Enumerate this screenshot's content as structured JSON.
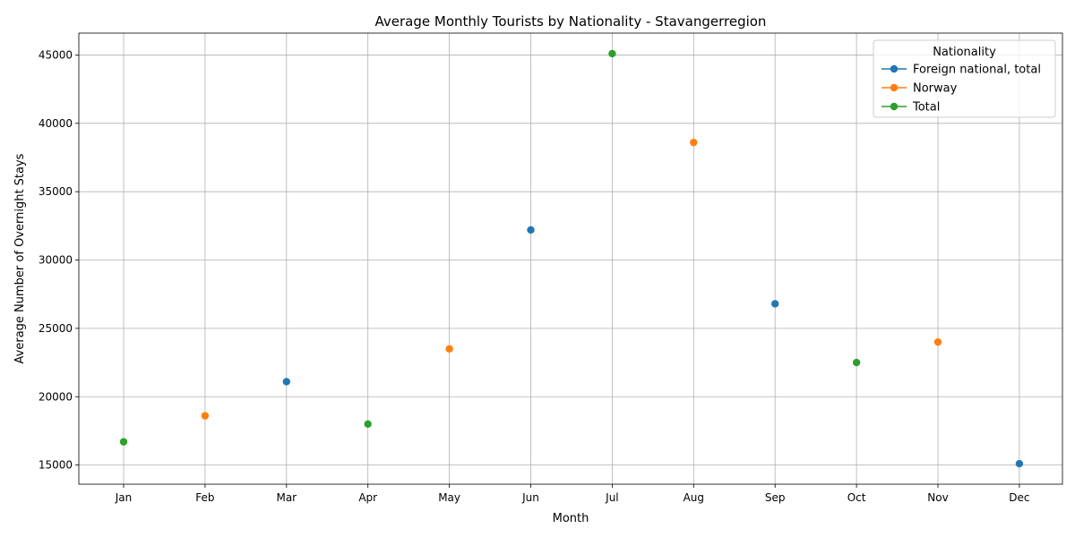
{
  "chart_data": {
    "type": "scatter",
    "title": "Average Monthly Tourists by Nationality - Stavangerregion",
    "xlabel": "Month",
    "ylabel": "Average Number of Overnight Stays",
    "categories": [
      "Jan",
      "Feb",
      "Mar",
      "Apr",
      "May",
      "Jun",
      "Jul",
      "Aug",
      "Sep",
      "Oct",
      "Nov",
      "Dec"
    ],
    "ylim": [
      13600,
      46600
    ],
    "yticks": [
      15000,
      20000,
      25000,
      30000,
      35000,
      40000,
      45000
    ],
    "grid": true,
    "legend": {
      "title": "Nationality",
      "placement": "top-right"
    },
    "series": [
      {
        "name": "Foreign national, total",
        "color": "#1f77b4",
        "points": [
          {
            "month": "Mar",
            "value": 21100
          },
          {
            "month": "Jun",
            "value": 32200
          },
          {
            "month": "Sep",
            "value": 26800
          },
          {
            "month": "Dec",
            "value": 15100
          }
        ]
      },
      {
        "name": "Norway",
        "color": "#ff7f0e",
        "points": [
          {
            "month": "Feb",
            "value": 18600
          },
          {
            "month": "May",
            "value": 23500
          },
          {
            "month": "Aug",
            "value": 38600
          },
          {
            "month": "Nov",
            "value": 24000
          }
        ]
      },
      {
        "name": "Total",
        "color": "#2ca02c",
        "points": [
          {
            "month": "Jan",
            "value": 16700
          },
          {
            "month": "Apr",
            "value": 18000
          },
          {
            "month": "Jul",
            "value": 45100
          },
          {
            "month": "Oct",
            "value": 22500
          }
        ]
      }
    ]
  }
}
